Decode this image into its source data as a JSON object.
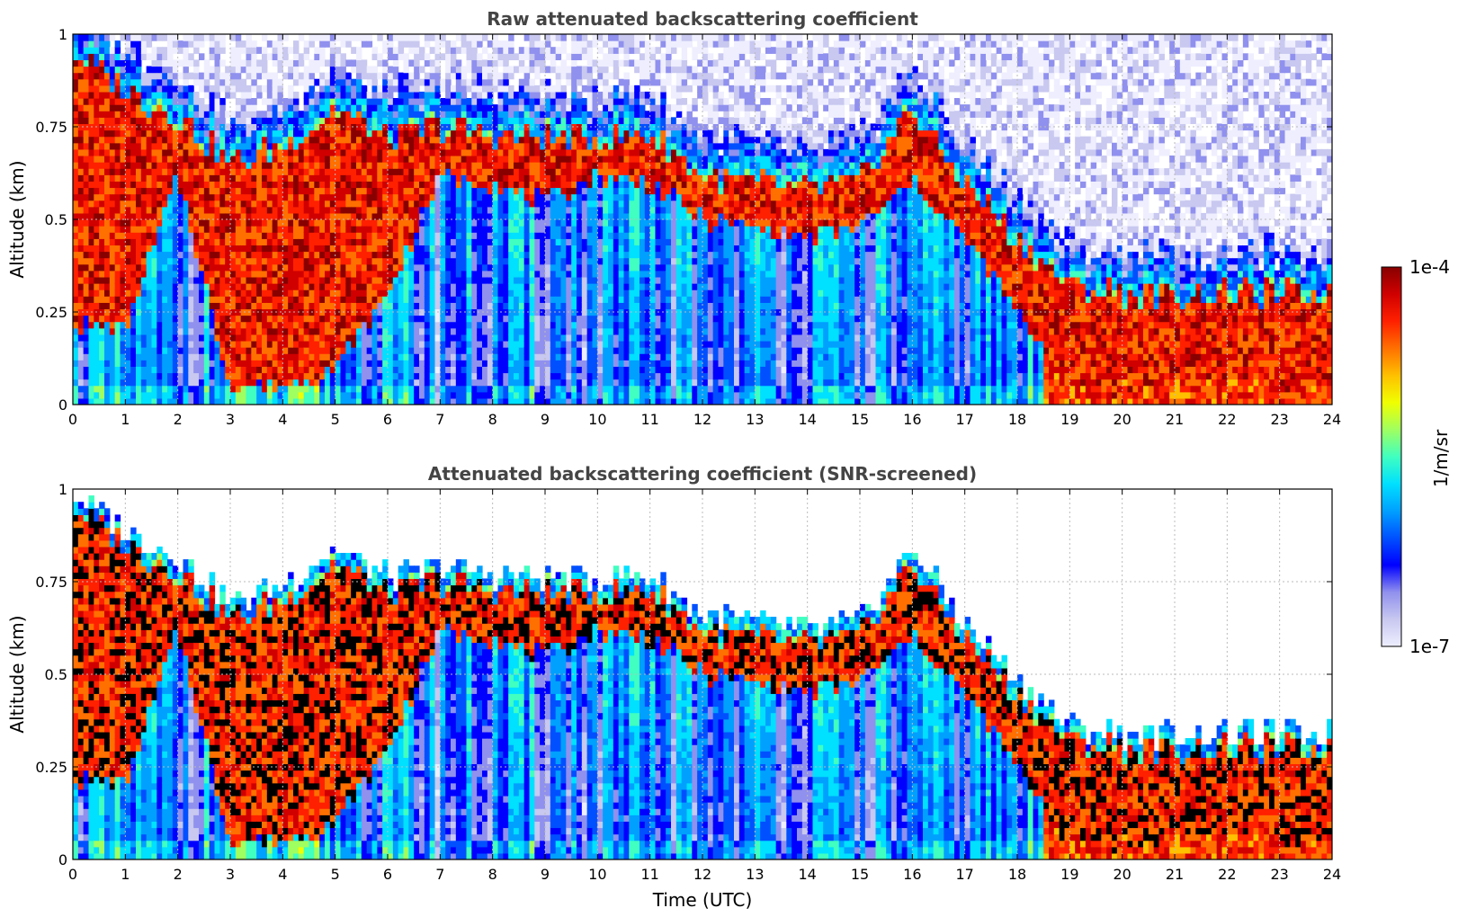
{
  "chart_data": [
    {
      "type": "heatmap",
      "title": "Raw attenuated backscattering coefficient",
      "xlabel": "",
      "ylabel": "Altitude (km)",
      "xlim": [
        0,
        24
      ],
      "ylim": [
        0,
        1
      ],
      "xticks": [
        "0",
        "1",
        "2",
        "3",
        "4",
        "5",
        "6",
        "7",
        "8",
        "9",
        "10",
        "11",
        "12",
        "13",
        "14",
        "15",
        "16",
        "17",
        "18",
        "19",
        "20",
        "21",
        "22",
        "23",
        "24"
      ],
      "yticks": [
        "0",
        "0.25",
        "0.5",
        "0.75",
        "1"
      ],
      "grid": true,
      "colorscale": "jet",
      "screened": false,
      "layer_top_km": [
        0.95,
        0.85,
        0.78,
        0.65,
        0.7,
        0.8,
        0.72,
        0.75,
        0.73,
        0.72,
        0.72,
        0.73,
        0.62,
        0.6,
        0.58,
        0.6,
        0.8,
        0.6,
        0.45,
        0.32,
        0.3,
        0.3,
        0.3,
        0.3,
        0.3
      ],
      "layer_bottom_km": [
        0.22,
        0.2,
        0.62,
        0.05,
        0.05,
        0.1,
        0.3,
        0.62,
        0.6,
        0.55,
        0.62,
        0.6,
        0.5,
        0.48,
        0.45,
        0.48,
        0.6,
        0.45,
        0.25,
        0.05,
        0.05,
        0.05,
        0.05,
        0.05,
        0.05
      ]
    },
    {
      "type": "heatmap",
      "title": "Attenuated backscattering coefficient (SNR-screened)",
      "xlabel": "Time (UTC)",
      "ylabel": "Altitude (km)",
      "xlim": [
        0,
        24
      ],
      "ylim": [
        0,
        1
      ],
      "xticks": [
        "0",
        "1",
        "2",
        "3",
        "4",
        "5",
        "6",
        "7",
        "8",
        "9",
        "10",
        "11",
        "12",
        "13",
        "14",
        "15",
        "16",
        "17",
        "18",
        "19",
        "20",
        "21",
        "22",
        "23",
        "24"
      ],
      "yticks": [
        "0",
        "0.25",
        "0.5",
        "0.75",
        "1"
      ],
      "grid": true,
      "colorscale": "jet",
      "screened": true,
      "layer_top_km": [
        0.95,
        0.85,
        0.78,
        0.65,
        0.7,
        0.8,
        0.72,
        0.75,
        0.73,
        0.72,
        0.72,
        0.73,
        0.62,
        0.6,
        0.58,
        0.6,
        0.8,
        0.6,
        0.45,
        0.32,
        0.3,
        0.3,
        0.3,
        0.3,
        0.3
      ],
      "layer_bottom_km": [
        0.22,
        0.2,
        0.62,
        0.05,
        0.05,
        0.1,
        0.3,
        0.62,
        0.6,
        0.55,
        0.62,
        0.6,
        0.5,
        0.48,
        0.45,
        0.48,
        0.6,
        0.45,
        0.25,
        0.05,
        0.05,
        0.05,
        0.05,
        0.05,
        0.05
      ]
    }
  ],
  "colorbar": {
    "label": "1/m/sr",
    "max_label": "1e-4",
    "min_label": "1e-7",
    "colors": [
      "#eeeeff",
      "#c8c8f0",
      "#9090ee",
      "#0000ff",
      "#0050ff",
      "#00a0ff",
      "#00e0ff",
      "#40ffc0",
      "#a0ff60",
      "#f0ff00",
      "#ffc000",
      "#ff7000",
      "#ff2000",
      "#d00000",
      "#880000"
    ]
  }
}
